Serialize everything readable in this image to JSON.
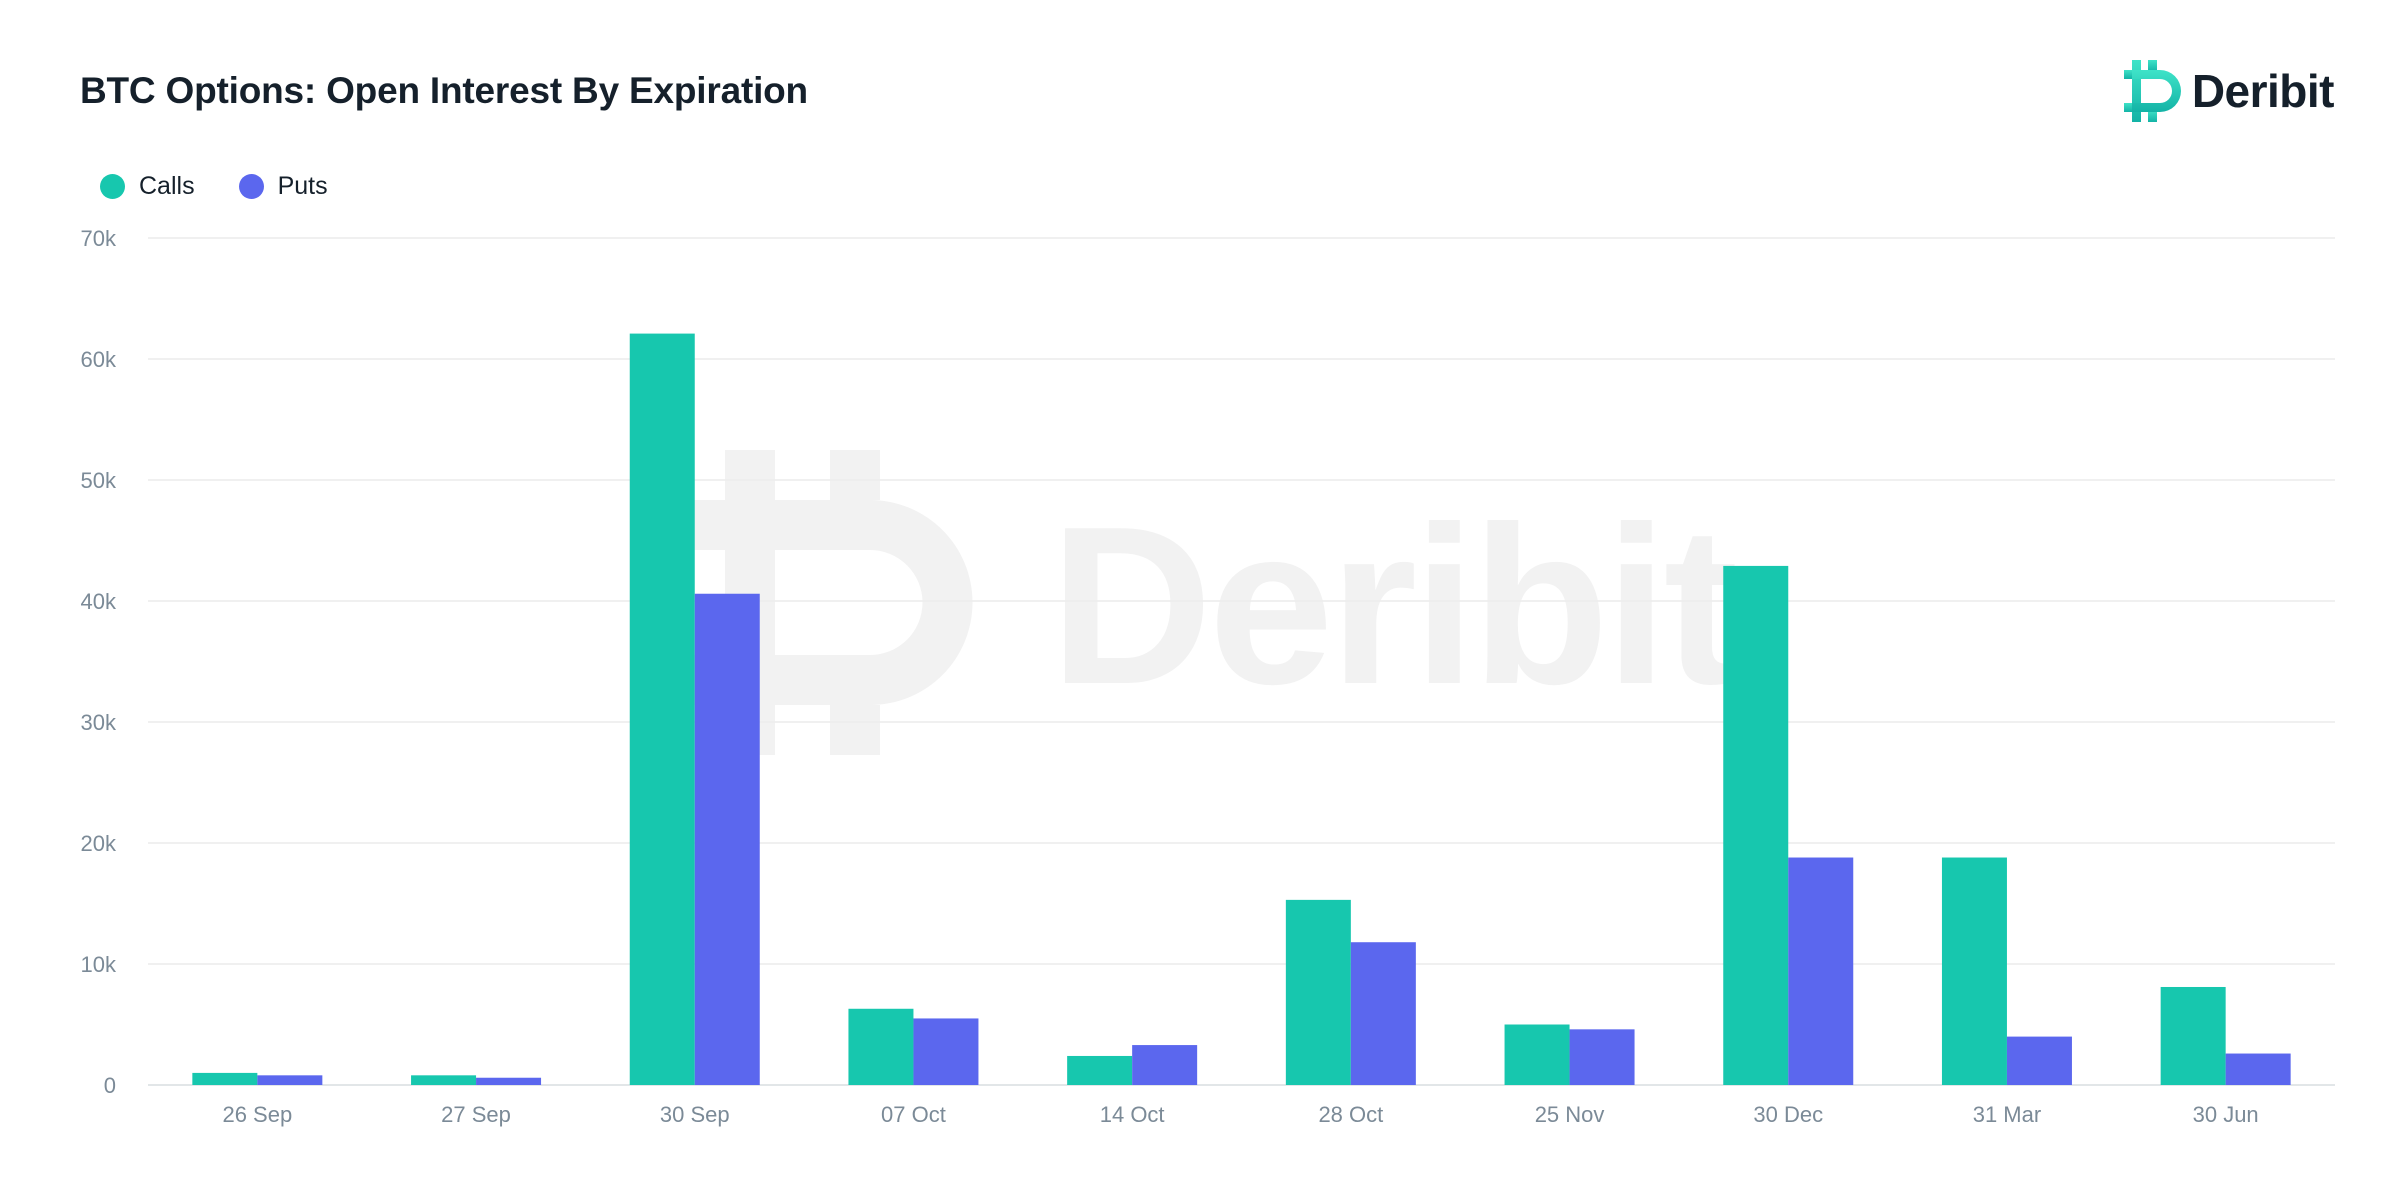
{
  "title": "BTC Options: Open Interest By Expiration",
  "brand": {
    "name": "Deribit",
    "logo_icon": "deribit-logo-icon",
    "watermark": "Deribit"
  },
  "colors": {
    "calls": "#17c7ae",
    "puts": "#5b67ee",
    "text": "#15202b",
    "axis_text": "#7b8a97",
    "grid": "#ececec",
    "watermark": "#f2f2f2"
  },
  "chart_data": {
    "type": "bar",
    "title": "BTC Options: Open Interest By Expiration",
    "xlabel": "",
    "ylabel": "",
    "categories": [
      "26 Sep",
      "27 Sep",
      "30 Sep",
      "07 Oct",
      "14 Oct",
      "28 Oct",
      "25 Nov",
      "30 Dec",
      "31 Mar",
      "30 Jun"
    ],
    "series": [
      {
        "name": "Calls",
        "color": "#17c7ae",
        "values": [
          1000,
          800,
          62100,
          6300,
          2400,
          15300,
          5000,
          42900,
          18800,
          8100
        ]
      },
      {
        "name": "Puts",
        "color": "#5b67ee",
        "values": [
          800,
          600,
          40600,
          5500,
          3300,
          11800,
          4600,
          18800,
          4000,
          2600
        ]
      }
    ],
    "ylim": [
      0,
      70000
    ],
    "yticks": [
      0,
      10000,
      20000,
      30000,
      40000,
      50000,
      60000,
      70000
    ],
    "ytick_labels": [
      "0",
      "10k",
      "20k",
      "30k",
      "40k",
      "50k",
      "60k",
      "70k"
    ],
    "grid": true,
    "legend": "top-left"
  }
}
